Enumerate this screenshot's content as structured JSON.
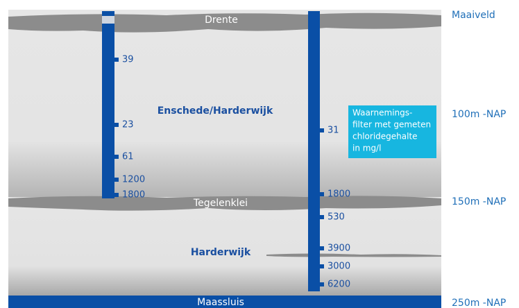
{
  "layers": [
    {
      "label": "Drente"
    },
    {
      "label": "Tegelenklei"
    },
    {
      "label": "Maassluis"
    }
  ],
  "depth_labels": [
    "Maaiveld",
    "100m -NAP",
    "150m -NAP",
    "250m -NAP"
  ],
  "aquifers": [
    "Enschede/Harderwijk",
    "Harderwijk"
  ],
  "wells": [
    {
      "readings": [
        "39",
        "23",
        "61",
        "1200",
        "1800"
      ]
    },
    {
      "readings": [
        "31",
        "1800",
        "530",
        "3900",
        "3000",
        "6200"
      ]
    }
  ],
  "legend": {
    "lines": [
      "Waarnemings-",
      "filter met gemeten",
      "chloridegehalte",
      "in mg/l"
    ]
  }
}
